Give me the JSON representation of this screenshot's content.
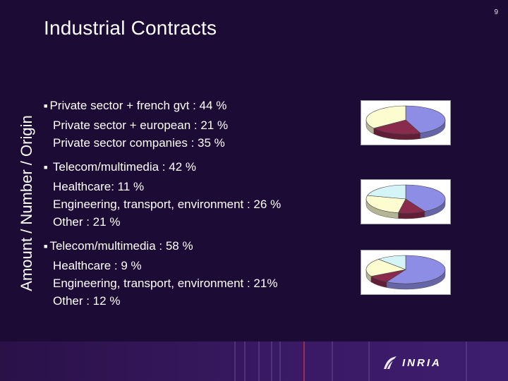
{
  "slide": {
    "page_number": "9",
    "title": "Industrial Contracts",
    "side_label": "Amount / Number / Origin"
  },
  "sections": [
    {
      "lines": [
        "Private sector + french gvt : 44 %",
        "Private sector + european : 21 %",
        "Private sector companies : 35 %"
      ]
    },
    {
      "lines": [
        "Telecom/multimedia : 42 %",
        "Healthcare: 11 %",
        "Engineering, transport, environment : 26 %",
        "Other : 21 %"
      ]
    },
    {
      "lines": [
        "Telecom/multimedia : 58 %",
        "Healthcare : 9 %",
        "Engineering, transport, environment : 21%",
        "Other : 12 %"
      ]
    }
  ],
  "chart_data": [
    {
      "type": "pie",
      "values": [
        44,
        21,
        35
      ],
      "colors": [
        "#8d8de6",
        "#8a2a4c",
        "#fcfcd0"
      ]
    },
    {
      "type": "pie",
      "values": [
        42,
        11,
        26,
        21
      ],
      "colors": [
        "#8d8de6",
        "#8a2a4c",
        "#fcfcd0",
        "#d4f4f8"
      ]
    },
    {
      "type": "pie",
      "values": [
        58,
        9,
        21,
        12
      ],
      "colors": [
        "#8d8de6",
        "#8a2a4c",
        "#fcfcd0",
        "#d4f4f8"
      ]
    }
  ],
  "footer": {
    "logo_text": "INRIA",
    "logo_icon": "inria-logo-icon",
    "accent_color": "#a8304a"
  }
}
